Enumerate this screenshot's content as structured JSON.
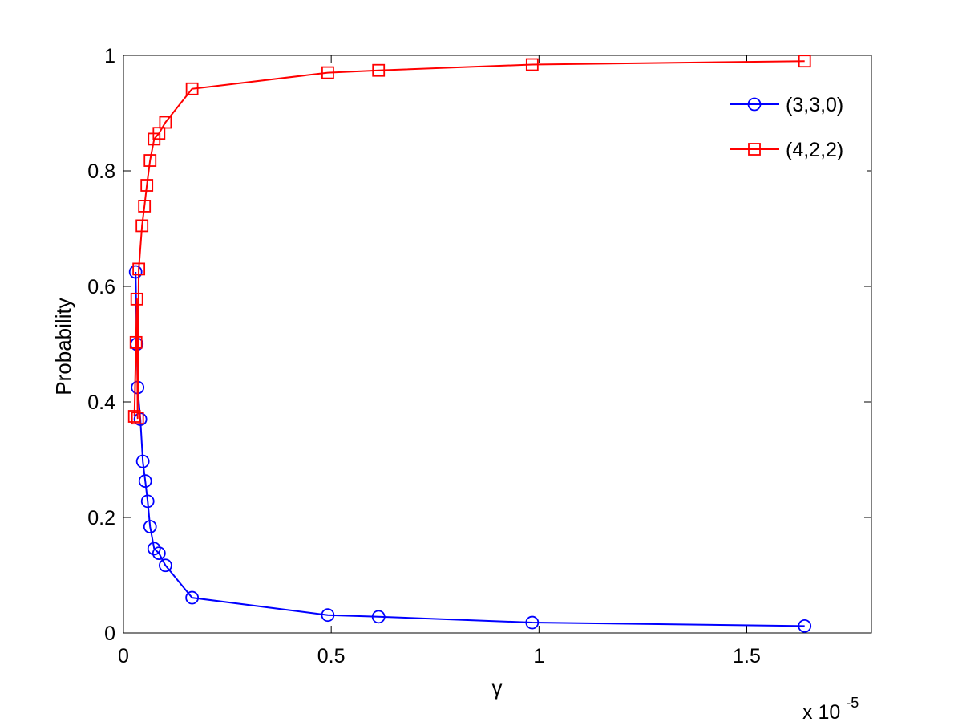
{
  "chart_data": {
    "type": "line",
    "title": "",
    "xlabel": "γ",
    "ylabel": "Probability",
    "x_exponent": {
      "base": "x 10",
      "power": "-5"
    },
    "xlim": [
      0,
      1.8
    ],
    "ylim": [
      0,
      1
    ],
    "x_ticks": [
      0,
      0.5,
      1,
      1.5
    ],
    "x_tick_labels": [
      "0",
      "0.5",
      "1",
      "1.5"
    ],
    "y_ticks": [
      0,
      0.2,
      0.4,
      0.6,
      0.8,
      1
    ],
    "y_tick_labels": [
      "0",
      "0.2",
      "0.4",
      "0.6",
      "0.8",
      "1"
    ],
    "grid": false,
    "legend_position": "top-right",
    "series": [
      {
        "name": "(3,3,0)",
        "color": "#0000ff",
        "marker": "circle",
        "x": [
          0.0293,
          0.0322,
          0.0341,
          0.0408,
          0.0466,
          0.0525,
          0.0583,
          0.0641,
          0.0738,
          0.0855,
          0.1011,
          0.1652,
          0.4918,
          0.6139,
          0.9836,
          1.6393
        ],
        "y": [
          0.625,
          0.5,
          0.425,
          0.37,
          0.297,
          0.263,
          0.228,
          0.184,
          0.146,
          0.138,
          0.117,
          0.061,
          0.031,
          0.028,
          0.018,
          0.012
        ]
      },
      {
        "name": "(4,2,2)",
        "color": "#ff0000",
        "marker": "square",
        "x": [
          0.0264,
          0.0303,
          0.0322,
          0.0341,
          0.0369,
          0.0447,
          0.0505,
          0.0563,
          0.0641,
          0.0738,
          0.0855,
          0.1011,
          0.1652,
          0.4918,
          0.6139,
          0.9836,
          1.6393
        ],
        "y": [
          0.375,
          0.503,
          0.578,
          0.372,
          0.63,
          0.705,
          0.739,
          0.775,
          0.818,
          0.855,
          0.865,
          0.884,
          0.942,
          0.97,
          0.974,
          0.984,
          0.99
        ]
      }
    ]
  }
}
